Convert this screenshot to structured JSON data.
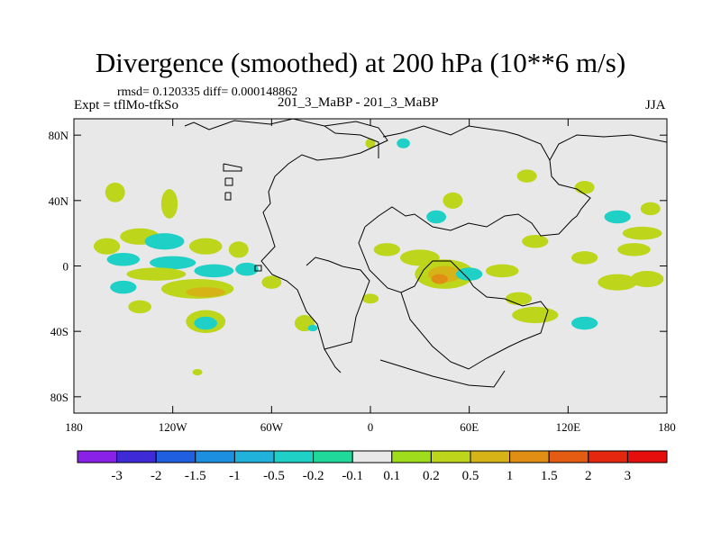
{
  "header": {
    "title": "Divergence (smoothed) at 200 hPa (10**6 m/s)",
    "stats": "rmsd= 0.120335 diff= 0.000148862",
    "expt": "Expt = tflMo-tfkSo",
    "case": "201_3_MaBP - 201_3_MaBP",
    "season": "JJA"
  },
  "chart_data": {
    "type": "heatmap",
    "title": "Divergence (smoothed) at 200 hPa (10**6 m/s)",
    "xlabel": "",
    "ylabel": "",
    "xlim": [
      -180,
      180
    ],
    "ylim": [
      -90,
      90
    ],
    "x_ticks": [
      {
        "value": -180,
        "label": "180"
      },
      {
        "value": -120,
        "label": "120W"
      },
      {
        "value": -60,
        "label": "60W"
      },
      {
        "value": 0,
        "label": "0"
      },
      {
        "value": 60,
        "label": "60E"
      },
      {
        "value": 120,
        "label": "120E"
      },
      {
        "value": 180,
        "label": "180"
      }
    ],
    "y_ticks": [
      {
        "value": 80,
        "label": "80N"
      },
      {
        "value": 40,
        "label": "40N"
      },
      {
        "value": 0,
        "label": "0"
      },
      {
        "value": -40,
        "label": "40S"
      },
      {
        "value": -80,
        "label": "80S"
      }
    ],
    "colorbar": {
      "levels": [
        "-3",
        "-2",
        "-1.5",
        "-1",
        "-0.5",
        "-0.2",
        "-0.1",
        "0.1",
        "0.2",
        "0.5",
        "1",
        "1.5",
        "2",
        "3"
      ],
      "colors": [
        "#8a21e6",
        "#3f2ad8",
        "#1f5fe0",
        "#1c8fe0",
        "#21b2dc",
        "#1fd0c6",
        "#20d89a",
        "#e8e8e8",
        "#9edc1c",
        "#bdd51a",
        "#d6b317",
        "#e08e14",
        "#e35c11",
        "#e6270f",
        "#e60d0d"
      ]
    },
    "background_color": "#e8e8e8",
    "anomaly_blobs": [
      {
        "lon": -155,
        "lat": 45,
        "rlon": 6,
        "rlat": 6,
        "level": "0.2"
      },
      {
        "lon": -122,
        "lat": 38,
        "rlon": 5,
        "rlat": 9,
        "level": "0.2"
      },
      {
        "lon": -140,
        "lat": 18,
        "rlon": 12,
        "rlat": 5,
        "level": "0.2"
      },
      {
        "lon": -160,
        "lat": 12,
        "rlon": 8,
        "rlat": 5,
        "level": "0.2"
      },
      {
        "lon": -125,
        "lat": 15,
        "rlon": 12,
        "rlat": 5,
        "level": "-0.2"
      },
      {
        "lon": -100,
        "lat": 12,
        "rlon": 10,
        "rlat": 5,
        "level": "0.2"
      },
      {
        "lon": -80,
        "lat": 10,
        "rlon": 6,
        "rlat": 5,
        "level": "0.2"
      },
      {
        "lon": -150,
        "lat": 4,
        "rlon": 10,
        "rlat": 4,
        "level": "-0.2"
      },
      {
        "lon": -120,
        "lat": 2,
        "rlon": 14,
        "rlat": 4,
        "level": "-0.2"
      },
      {
        "lon": -130,
        "lat": -5,
        "rlon": 18,
        "rlat": 4,
        "level": "0.2"
      },
      {
        "lon": -95,
        "lat": -3,
        "rlon": 12,
        "rlat": 4,
        "level": "-0.2"
      },
      {
        "lon": -75,
        "lat": -2,
        "rlon": 7,
        "rlat": 4,
        "level": "-0.2"
      },
      {
        "lon": -105,
        "lat": -14,
        "rlon": 22,
        "rlat": 6,
        "level": "0.2"
      },
      {
        "lon": -100,
        "lat": -16,
        "rlon": 12,
        "rlat": 3,
        "level": "0.5"
      },
      {
        "lon": -150,
        "lat": -13,
        "rlon": 8,
        "rlat": 4,
        "level": "-0.2"
      },
      {
        "lon": -60,
        "lat": -10,
        "rlon": 6,
        "rlat": 4,
        "level": "0.2"
      },
      {
        "lon": -140,
        "lat": -25,
        "rlon": 7,
        "rlat": 4,
        "level": "0.2"
      },
      {
        "lon": -100,
        "lat": -34,
        "rlon": 12,
        "rlat": 7,
        "level": "0.2"
      },
      {
        "lon": -100,
        "lat": -35,
        "rlon": 7,
        "rlat": 4,
        "level": "-0.2"
      },
      {
        "lon": -40,
        "lat": -35,
        "rlon": 6,
        "rlat": 5,
        "level": "0.2"
      },
      {
        "lon": -35,
        "lat": -38,
        "rlon": 3,
        "rlat": 2,
        "level": "-0.2"
      },
      {
        "lon": -105,
        "lat": -65,
        "rlon": 3,
        "rlat": 2,
        "level": "0.2"
      },
      {
        "lon": 10,
        "lat": 10,
        "rlon": 8,
        "rlat": 4,
        "level": "0.2"
      },
      {
        "lon": 30,
        "lat": 5,
        "rlon": 12,
        "rlat": 5,
        "level": "0.2"
      },
      {
        "lon": 45,
        "lat": -5,
        "rlon": 18,
        "rlat": 9,
        "level": "0.2"
      },
      {
        "lon": 45,
        "lat": -5,
        "rlon": 10,
        "rlat": 5,
        "level": "0.5"
      },
      {
        "lon": 42,
        "lat": -8,
        "rlon": 5,
        "rlat": 3,
        "level": "1"
      },
      {
        "lon": 60,
        "lat": -5,
        "rlon": 8,
        "rlat": 4,
        "level": "-0.2"
      },
      {
        "lon": 80,
        "lat": -3,
        "rlon": 10,
        "rlat": 4,
        "level": "0.2"
      },
      {
        "lon": 100,
        "lat": -30,
        "rlon": 14,
        "rlat": 5,
        "level": "0.2"
      },
      {
        "lon": 90,
        "lat": -20,
        "rlon": 8,
        "rlat": 4,
        "level": "0.2"
      },
      {
        "lon": 130,
        "lat": -35,
        "rlon": 8,
        "rlat": 4,
        "level": "-0.2"
      },
      {
        "lon": 150,
        "lat": -10,
        "rlon": 12,
        "rlat": 5,
        "level": "0.2"
      },
      {
        "lon": 168,
        "lat": -8,
        "rlon": 10,
        "rlat": 5,
        "level": "0.2"
      },
      {
        "lon": 130,
        "lat": 5,
        "rlon": 8,
        "rlat": 4,
        "level": "0.2"
      },
      {
        "lon": 160,
        "lat": 10,
        "rlon": 10,
        "rlat": 4,
        "level": "0.2"
      },
      {
        "lon": 165,
        "lat": 20,
        "rlon": 12,
        "rlat": 4,
        "level": "0.2"
      },
      {
        "lon": 130,
        "lat": 48,
        "rlon": 6,
        "rlat": 4,
        "level": "0.2"
      },
      {
        "lon": 150,
        "lat": 30,
        "rlon": 8,
        "rlat": 4,
        "level": "-0.2"
      },
      {
        "lon": 170,
        "lat": 35,
        "rlon": 6,
        "rlat": 4,
        "level": "0.2"
      },
      {
        "lon": 95,
        "lat": 55,
        "rlon": 6,
        "rlat": 4,
        "level": "0.2"
      },
      {
        "lon": 100,
        "lat": 15,
        "rlon": 8,
        "rlat": 4,
        "level": "0.2"
      },
      {
        "lon": 50,
        "lat": 40,
        "rlon": 6,
        "rlat": 5,
        "level": "0.2"
      },
      {
        "lon": 40,
        "lat": 30,
        "rlon": 6,
        "rlat": 4,
        "level": "-0.2"
      },
      {
        "lon": 20,
        "lat": 75,
        "rlon": 4,
        "rlat": 3,
        "level": "-0.2"
      },
      {
        "lon": 0,
        "lat": 75,
        "rlon": 3,
        "rlat": 3,
        "level": "0.2"
      },
      {
        "lon": 0,
        "lat": -20,
        "rlon": 5,
        "rlat": 3,
        "level": "0.2"
      }
    ]
  }
}
